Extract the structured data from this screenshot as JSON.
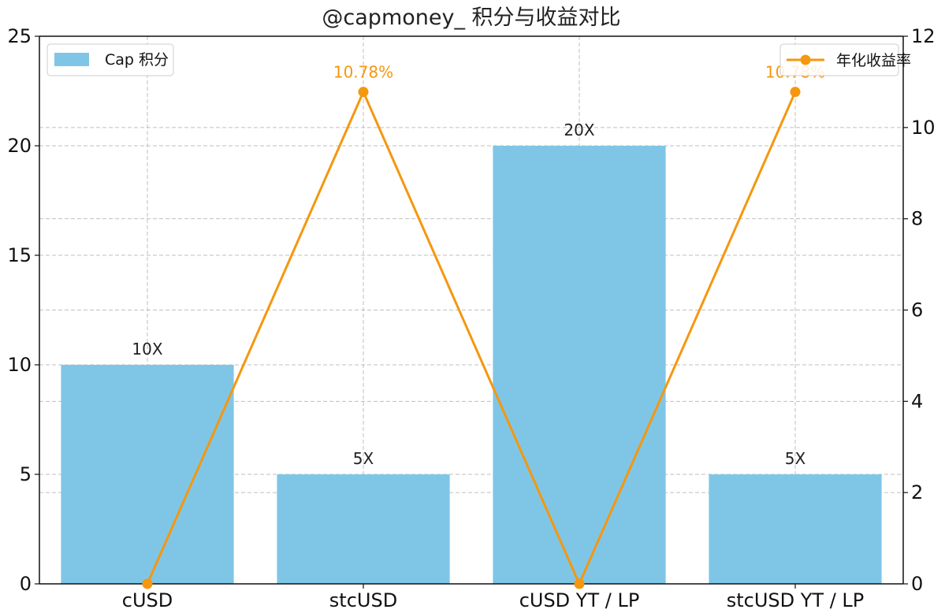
{
  "chart_data": {
    "type": "bar",
    "title": "@capmoney_ 积分与收益对比",
    "categories": [
      "cUSD",
      "stcUSD",
      "cUSD YT / LP",
      "stcUSD YT / LP"
    ],
    "series": [
      {
        "name": "Cap 积分",
        "type": "bar",
        "axis": "left",
        "values": [
          10,
          5,
          20,
          5
        ],
        "labels": [
          "10X",
          "5X",
          "20X",
          "5X"
        ]
      },
      {
        "name": "年化收益率",
        "type": "line",
        "axis": "right",
        "values": [
          0,
          10.78,
          0,
          10.78
        ],
        "labels": [
          "",
          "10.78%",
          "",
          "10.78%"
        ]
      }
    ],
    "y_left": {
      "ylim": [
        0,
        25
      ],
      "ticks": [
        "0",
        "5",
        "10",
        "15",
        "20",
        "25"
      ]
    },
    "y_right": {
      "ylim": [
        0,
        12
      ],
      "ticks": [
        "0",
        "2",
        "4",
        "6",
        "8",
        "10",
        "12"
      ]
    },
    "xlabel": "",
    "ylabel": "",
    "grid": true,
    "legend_bar": "top-left",
    "legend_line": "top-right",
    "colors": {
      "bar": "#7fc6e6",
      "line": "#f5970f",
      "grid": "#b0b0b0"
    }
  }
}
